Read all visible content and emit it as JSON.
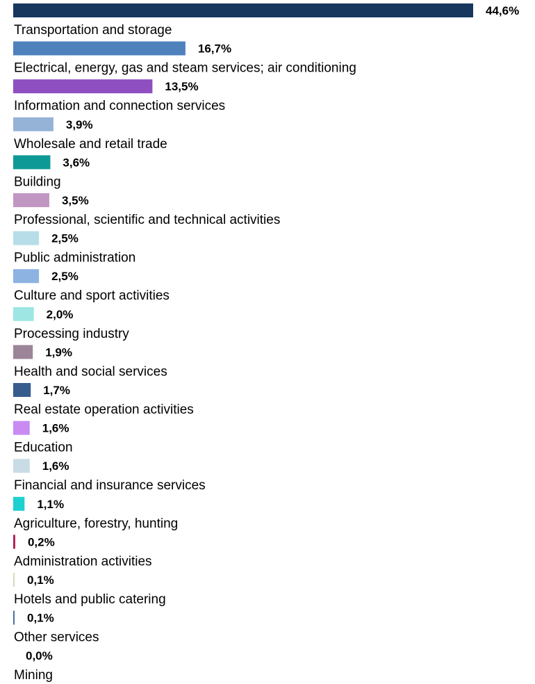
{
  "chart_data": {
    "type": "bar",
    "orientation": "horizontal",
    "categories": [
      "Transportation and storage",
      "Electrical, energy, gas and steam services; air conditioning",
      "Information and connection services",
      "Wholesale and retail trade",
      "Building",
      "Professional, scientific and technical activities",
      "Public administration",
      "Culture and sport activities",
      "Processing industry",
      "Health and social services",
      "Real estate operation activities",
      "Education",
      "Financial and insurance services",
      "Agriculture, forestry, hunting",
      "Administration activities",
      "Hotels and public catering",
      "Other services",
      "Mining"
    ],
    "values": [
      44.6,
      16.7,
      13.5,
      3.9,
      3.6,
      3.5,
      2.5,
      2.5,
      2.0,
      1.9,
      1.7,
      1.6,
      1.6,
      1.1,
      0.2,
      0.1,
      0.1,
      0.0
    ],
    "value_labels": [
      "44,6%",
      "16,7%",
      "13,5%",
      "3,9%",
      "3,6%",
      "3,5%",
      "2,5%",
      "2,5%",
      "2,0%",
      "1,9%",
      "1,7%",
      "1,6%",
      "1,6%",
      "1,1%",
      "0,2%",
      "0,1%",
      "0,1%",
      "0,0%"
    ],
    "colors": [
      "#17375e",
      "#4f81bd",
      "#8e4fc1",
      "#95b3d7",
      "#0d9a96",
      "#c296c2",
      "#b7dde8",
      "#8db3e2",
      "#9ee6e3",
      "#9c8499",
      "#375d8e",
      "#c98bf2",
      "#c9dce6",
      "#1ed0d0",
      "#b0225a",
      "#d8d8bc",
      "#4a6fa0",
      "#dddddd"
    ],
    "title": "",
    "xlabel": "",
    "ylabel": "",
    "xlim": [
      0,
      44.6
    ],
    "grid": false,
    "legend": "none",
    "label_position": "below-bar"
  }
}
